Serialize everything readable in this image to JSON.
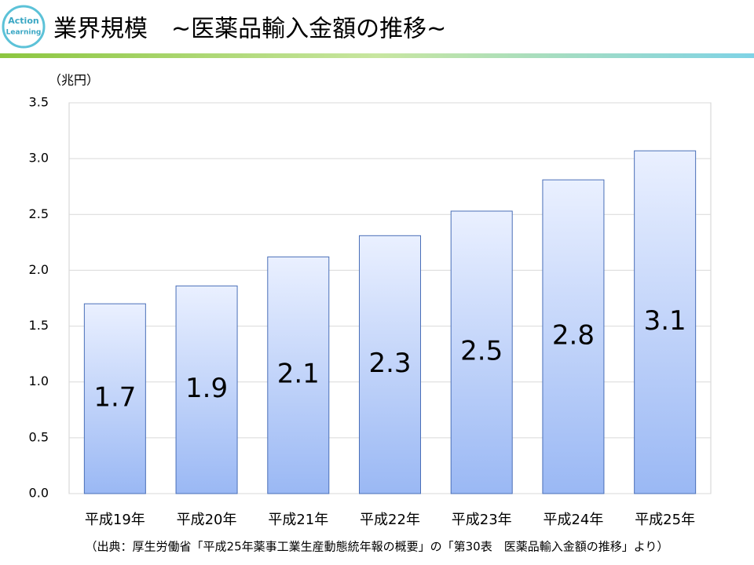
{
  "logo": [
    "Action",
    "Learning"
  ],
  "chart_data": {
    "type": "bar",
    "title": "業界規模　~医薬品輸入金額の推移~",
    "y_label": "（兆円）",
    "source": "（出典：厚生労働省「平成25年薬事工業生産動態統年報の概要」の「第30表　医薬品輸入金額の推移」より）",
    "categories": [
      "平成19年",
      "平成20年",
      "平成21年",
      "平成22年",
      "平成23年",
      "平成24年",
      "平成25年"
    ],
    "values": [
      1.7,
      1.86,
      2.12,
      2.31,
      2.53,
      2.81,
      3.07
    ],
    "value_labels": [
      "1.7",
      "1.9",
      "2.1",
      "2.3",
      "2.5",
      "2.8",
      "3.1"
    ],
    "color": "#9ab8f4",
    "ylim": [
      0,
      3.5
    ],
    "yticks": [
      {
        "value": 0,
        "label": "0.0"
      },
      0.5,
      {
        "value": 1,
        "label": "1.0"
      },
      1.5,
      {
        "value": 2,
        "label": "2.0"
      },
      2.5,
      {
        "value": 3,
        "label": "3.0"
      },
      3.5
    ],
    "grid": true
  }
}
